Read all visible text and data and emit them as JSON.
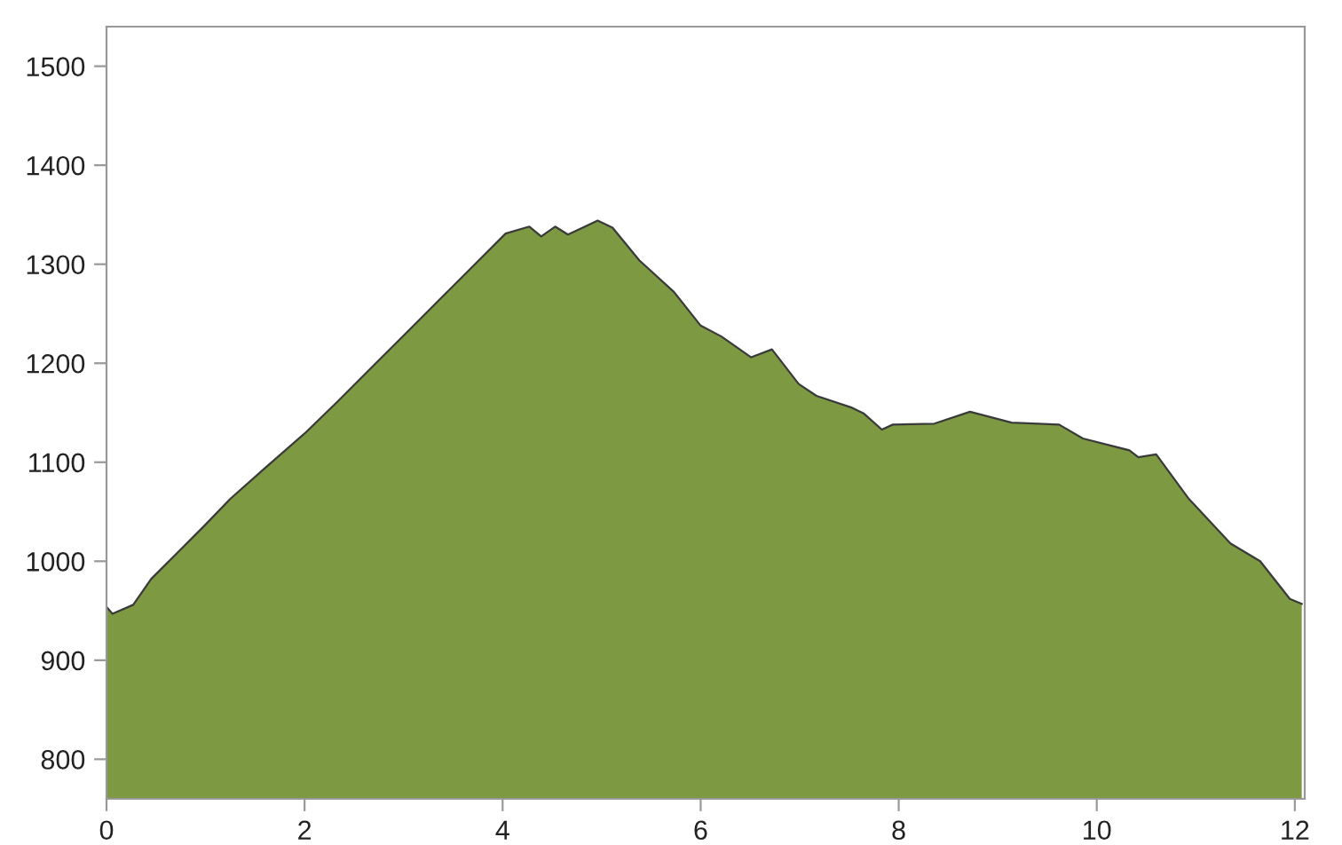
{
  "chart_data": {
    "type": "area",
    "x": [
      0,
      0.06,
      0.27,
      0.45,
      0.72,
      0.99,
      1.25,
      1.61,
      2.0,
      2.33,
      2.69,
      3.05,
      3.41,
      3.76,
      4.03,
      4.27,
      4.39,
      4.53,
      4.66,
      4.96,
      5.11,
      5.38,
      5.73,
      6.0,
      6.21,
      6.51,
      6.72,
      6.99,
      7.17,
      7.53,
      7.65,
      7.83,
      7.94,
      8.36,
      8.72,
      9.14,
      9.62,
      9.86,
      10.33,
      10.42,
      10.6,
      10.93,
      11.35,
      11.65,
      11.95,
      12.07
    ],
    "series": [
      {
        "color": "#7d9a42",
        "values": [
          954,
          947,
          956,
          982,
          1009,
          1036,
          1063,
          1095,
          1129,
          1161,
          1197,
          1233,
          1269,
          1304,
          1331,
          1338,
          1328,
          1338,
          1330,
          1344,
          1337,
          1304,
          1272,
          1238,
          1227,
          1206,
          1214,
          1179,
          1167,
          1155,
          1149,
          1133,
          1138,
          1139,
          1151,
          1140,
          1138,
          1124,
          1112,
          1105,
          1108,
          1063,
          1018,
          1000,
          962,
          957
        ]
      }
    ],
    "xlim": [
      0,
      12.1
    ],
    "xticks": [
      0,
      2,
      4,
      6,
      8,
      10,
      12
    ],
    "ylim": [
      760,
      1540
    ],
    "yticks": [
      800,
      900,
      1000,
      1100,
      1200,
      1300,
      1400,
      1500
    ],
    "grid": false,
    "legend": false
  }
}
